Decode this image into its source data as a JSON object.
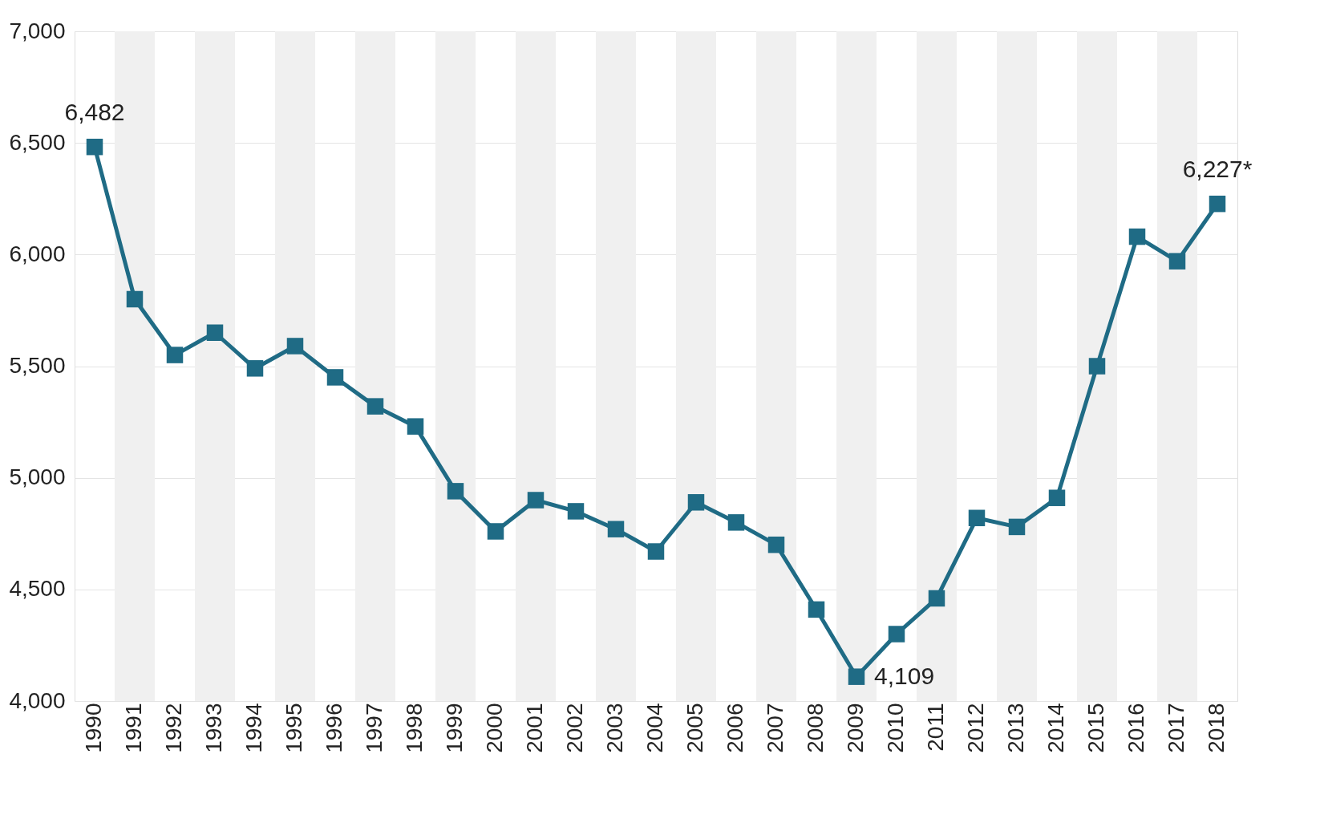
{
  "chart_data": {
    "type": "line",
    "categories": [
      "1990",
      "1991",
      "1992",
      "1993",
      "1994",
      "1995",
      "1996",
      "1997",
      "1998",
      "1999",
      "2000",
      "2001",
      "2002",
      "2003",
      "2004",
      "2005",
      "2006",
      "2007",
      "2008",
      "2009",
      "2010",
      "2011",
      "2012",
      "2013",
      "2014",
      "2015",
      "2016",
      "2017",
      "2018"
    ],
    "series": [
      {
        "color": "#1f6b85",
        "values": [
          6482,
          5800,
          5550,
          5650,
          5490,
          5590,
          5450,
          5320,
          5230,
          4940,
          4760,
          4900,
          4850,
          4770,
          4670,
          4890,
          4800,
          4700,
          4410,
          4109,
          4300,
          4460,
          4820,
          4780,
          4910,
          5500,
          6080,
          5970,
          6227
        ],
        "value_labels": [
          "6,482",
          null,
          null,
          null,
          null,
          null,
          null,
          null,
          null,
          null,
          null,
          null,
          null,
          null,
          null,
          null,
          null,
          null,
          null,
          "4,109",
          null,
          null,
          null,
          null,
          null,
          null,
          null,
          null,
          "6,227*"
        ]
      }
    ],
    "ylim": [
      4000,
      7000
    ],
    "yticks": [
      {
        "value": 4000,
        "label": "4,000"
      },
      {
        "value": 4500,
        "label": "4,500"
      },
      {
        "value": 5000,
        "label": "5,000"
      },
      {
        "value": 5500,
        "label": "5,500"
      },
      {
        "value": 6000,
        "label": "6,000"
      },
      {
        "value": 6500,
        "label": "6,500"
      },
      {
        "value": 7000,
        "label": "7,000"
      }
    ],
    "grid": "y",
    "marker": "square",
    "line_style": "solid",
    "bands": [
      {
        "axis": "x",
        "from": "1991",
        "to": "1991",
        "color": "#f0f0f0"
      },
      {
        "axis": "x",
        "from": "1993",
        "to": "1993",
        "color": "#f0f0f0"
      },
      {
        "axis": "x",
        "from": "1995",
        "to": "1995",
        "color": "#f0f0f0"
      },
      {
        "axis": "x",
        "from": "1997",
        "to": "1997",
        "color": "#f0f0f0"
      },
      {
        "axis": "x",
        "from": "1999",
        "to": "1999",
        "color": "#f0f0f0"
      },
      {
        "axis": "x",
        "from": "2001",
        "to": "2001",
        "color": "#f0f0f0"
      },
      {
        "axis": "x",
        "from": "2003",
        "to": "2003",
        "color": "#f0f0f0"
      },
      {
        "axis": "x",
        "from": "2005",
        "to": "2005",
        "color": "#f0f0f0"
      },
      {
        "axis": "x",
        "from": "2007",
        "to": "2007",
        "color": "#f0f0f0"
      },
      {
        "axis": "x",
        "from": "2009",
        "to": "2009",
        "color": "#f0f0f0"
      },
      {
        "axis": "x",
        "from": "2011",
        "to": "2011",
        "color": "#f0f0f0"
      },
      {
        "axis": "x",
        "from": "2013",
        "to": "2013",
        "color": "#f0f0f0"
      },
      {
        "axis": "x",
        "from": "2015",
        "to": "2015",
        "color": "#f0f0f0"
      },
      {
        "axis": "x",
        "from": "2017",
        "to": "2017",
        "color": "#f0f0f0"
      }
    ]
  }
}
